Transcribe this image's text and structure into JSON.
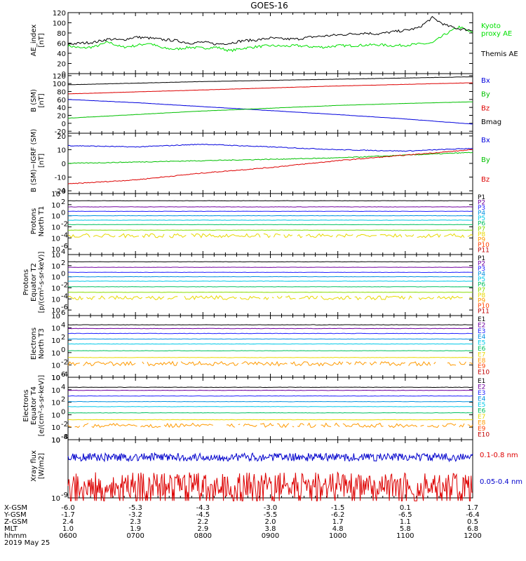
{
  "title": "GOES-16",
  "chart_data": [
    {
      "type": "line",
      "panel": "ae",
      "ylabel": [
        "AE_index",
        "[nT]"
      ],
      "ylim": [
        0,
        120
      ],
      "yticks": [
        "0",
        "20",
        "40",
        "60",
        "80",
        "100",
        "120"
      ],
      "series": [
        {
          "name": "Kyoto proxy AE",
          "label_lines": [
            "Kyoto",
            "proxy AE"
          ],
          "color": "#00e000",
          "x": [
            6.0,
            6.2,
            6.4,
            6.6,
            6.8,
            7.0,
            7.2,
            7.4,
            7.6,
            7.8,
            8.0,
            8.2,
            8.4,
            8.6,
            8.8,
            9.0,
            9.2,
            9.4,
            9.6,
            9.8,
            10.0,
            10.2,
            10.4,
            10.6,
            10.8,
            11.0,
            11.2,
            11.4,
            11.6,
            11.8,
            12.0
          ],
          "values": [
            55,
            50,
            53,
            62,
            52,
            55,
            60,
            50,
            48,
            52,
            50,
            52,
            45,
            50,
            53,
            55,
            54,
            55,
            53,
            52,
            55,
            55,
            56,
            57,
            55,
            56,
            58,
            60,
            78,
            92,
            80
          ]
        },
        {
          "name": "Themis AE",
          "label_lines": [
            "Themis AE"
          ],
          "color": "#000000",
          "x": [
            6.0,
            6.2,
            6.4,
            6.6,
            6.8,
            7.0,
            7.2,
            7.4,
            7.6,
            7.8,
            8.0,
            8.2,
            8.4,
            8.6,
            8.8,
            9.0,
            9.2,
            9.4,
            9.6,
            9.8,
            10.0,
            10.2,
            10.4,
            10.6,
            10.8,
            11.0,
            11.2,
            11.4,
            11.6,
            11.8,
            12.0
          ],
          "values": [
            58,
            60,
            62,
            68,
            66,
            72,
            70,
            67,
            65,
            60,
            62,
            58,
            60,
            65,
            66,
            70,
            68,
            68,
            72,
            74,
            76,
            78,
            80,
            78,
            82,
            85,
            90,
            110,
            95,
            88,
            85
          ]
        }
      ]
    },
    {
      "type": "line",
      "panel": "b",
      "ylabel": [
        "B (SM)",
        "[nT]"
      ],
      "ylim": [
        -25,
        125
      ],
      "yticks": [
        "-20",
        "0",
        "20",
        "40",
        "60",
        "80",
        "100",
        "120"
      ],
      "series": [
        {
          "name": "Bx",
          "color": "#0000dd",
          "x": [
            6,
            7,
            8,
            9,
            10,
            11,
            12
          ],
          "values": [
            60,
            52,
            42,
            32,
            22,
            11,
            -2
          ]
        },
        {
          "name": "By",
          "color": "#00c000",
          "x": [
            6,
            7,
            8,
            9,
            10,
            11,
            12
          ],
          "values": [
            13,
            22,
            31,
            38,
            45,
            50,
            54
          ]
        },
        {
          "name": "Bz",
          "color": "#dd0000",
          "x": [
            6,
            7,
            8,
            9,
            10,
            11,
            12
          ],
          "values": [
            74,
            79,
            84,
            89,
            94,
            98,
            102
          ]
        },
        {
          "name": "Bmag",
          "color": "#000000",
          "x": [
            6,
            7,
            8,
            9,
            10,
            11,
            12
          ],
          "values": [
            97,
            101,
            105,
            108,
            111,
            114,
            117
          ]
        }
      ]
    },
    {
      "type": "line",
      "panel": "db",
      "ylabel": [
        "B (SM)−IGRF (SM)",
        "[nT]"
      ],
      "ylim": [
        -22,
        22
      ],
      "yticks": [
        "-20",
        "-10",
        "0",
        "10",
        "20"
      ],
      "series": [
        {
          "name": "Bx",
          "color": "#0000dd",
          "x": [
            6,
            7,
            8,
            9,
            10,
            11,
            12
          ],
          "values": [
            13,
            12,
            14,
            12,
            10,
            9,
            11
          ]
        },
        {
          "name": "By",
          "color": "#00c000",
          "x": [
            6,
            7,
            8,
            9,
            10,
            11,
            12
          ],
          "values": [
            0,
            1,
            2,
            3,
            4,
            6,
            8
          ]
        },
        {
          "name": "Bz",
          "color": "#dd0000",
          "x": [
            6,
            7,
            8,
            9,
            10,
            11,
            12
          ],
          "values": [
            -15,
            -12,
            -7,
            -3,
            2,
            6,
            10
          ]
        }
      ]
    },
    {
      "type": "line",
      "panel": "protons_t1",
      "log": true,
      "ylabel": [
        "Protons",
        "North T1"
      ],
      "ylim_exp": [
        -7,
        4
      ],
      "ytick_exps": [
        -6,
        -4,
        -2,
        0,
        2,
        4
      ],
      "series_names": [
        "P1",
        "P2",
        "P3",
        "P4",
        "P5",
        "P6",
        "P7",
        "P8",
        "P9",
        "P10",
        "P11"
      ],
      "series_colors": [
        "#000000",
        "#7000a0",
        "#2020ff",
        "#0090e0",
        "#00c8e8",
        "#00c060",
        "#88dd00",
        "#e8d800",
        "#ff9a00",
        "#ff4000",
        "#c00000"
      ],
      "levels_exp": [
        2.7,
        1.6,
        0.8,
        0.0,
        -0.8,
        -1.6,
        -2.6,
        -3.6,
        null,
        null,
        null
      ]
    },
    {
      "type": "line",
      "panel": "protons_t2",
      "log": true,
      "ylabel": [
        "Protons",
        "Equator T2",
        "[p/(cm²-s-sr-keV)]"
      ],
      "ylim_exp": [
        -7,
        4
      ],
      "ytick_exps": [
        -6,
        -4,
        -2,
        0,
        2,
        4
      ],
      "series_names": [
        "P1",
        "P2",
        "P3",
        "P4",
        "P5",
        "P6",
        "P7",
        "P8",
        "P9",
        "P10",
        "P11"
      ],
      "series_colors": [
        "#000000",
        "#7000a0",
        "#2020ff",
        "#0090e0",
        "#00c8e8",
        "#00c060",
        "#88dd00",
        "#e8d800",
        "#ff9a00",
        "#ff4000",
        "#c00000"
      ],
      "levels_exp": [
        2.7,
        1.7,
        0.8,
        0.0,
        -0.8,
        -1.8,
        -2.8,
        -3.8,
        null,
        null,
        null
      ]
    },
    {
      "type": "line",
      "panel": "electrons_t3",
      "log": true,
      "ylabel": [
        "Electrons",
        "North T3"
      ],
      "ylim_exp": [
        -4,
        6
      ],
      "ytick_exps": [
        -4,
        -2,
        0,
        2,
        4,
        6
      ],
      "series_names": [
        "E1",
        "E2",
        "E3",
        "E4",
        "E5",
        "E6",
        "E7",
        "E8",
        "E9",
        "E10"
      ],
      "series_colors": [
        "#000000",
        "#7000a0",
        "#2020ff",
        "#0090e0",
        "#00c8e8",
        "#00c060",
        "#e8d800",
        "#ff9a00",
        "#ff4000",
        "#c00000"
      ],
      "levels_exp": [
        4.5,
        3.9,
        3.1,
        2.2,
        1.4,
        0.3,
        -0.8,
        -1.8,
        null,
        null
      ]
    },
    {
      "type": "line",
      "panel": "electrons_t4",
      "log": true,
      "ylabel": [
        "Electrons",
        "Equator T4",
        "[e/(cm²-s-sr-keV)]"
      ],
      "ylim_exp": [
        -4,
        6
      ],
      "ytick_exps": [
        -4,
        -2,
        0,
        2,
        4,
        6
      ],
      "series_names": [
        "E1",
        "E2",
        "E3",
        "E4",
        "E5",
        "E6",
        "E7",
        "E8",
        "E9",
        "E10"
      ],
      "series_colors": [
        "#000000",
        "#7000a0",
        "#2020ff",
        "#0090e0",
        "#00c8e8",
        "#00c060",
        "#e8d800",
        "#ff9a00",
        "#ff4000",
        "#c00000"
      ],
      "levels_exp": [
        4.4,
        3.9,
        3.0,
        2.1,
        1.3,
        0.3,
        -0.8,
        -1.7,
        null,
        null
      ]
    },
    {
      "type": "line",
      "panel": "xray",
      "log": true,
      "ylabel": [
        "Xray flux",
        "[W/m2]"
      ],
      "ylim_exp": [
        -9,
        -8
      ],
      "ytick_exps": [
        -9,
        -8
      ],
      "series": [
        {
          "name": "0.1-0.8 nm",
          "color": "#dd0000",
          "level": 0.22,
          "noise": 0.22
        },
        {
          "name": "0.05-0.4 nm",
          "color": "#0000cc",
          "level": 0.7,
          "noise": 0.07
        }
      ]
    }
  ],
  "x_axis": {
    "row_labels": [
      "X-GSM",
      "Y-GSM",
      "Z-GSM",
      "MLT",
      "hhmm"
    ],
    "date": "2019 May 25",
    "columns": [
      [
        "-6.0",
        "-1.7",
        "2.4",
        "1.0",
        "0600"
      ],
      [
        "-5.3",
        "-3.2",
        "2.3",
        "1.9",
        "0700"
      ],
      [
        "-4.3",
        "-4.5",
        "2.2",
        "2.9",
        "0800"
      ],
      [
        "-3.0",
        "-5.5",
        "2.0",
        "3.8",
        "0900"
      ],
      [
        "-1.5",
        "-6.2",
        "1.7",
        "4.8",
        "1000"
      ],
      [
        "0.1",
        "-6.5",
        "1.1",
        "5.8",
        "1100"
      ],
      [
        "1.7",
        "-6.4",
        "0.5",
        "6.8",
        "1200"
      ]
    ]
  }
}
